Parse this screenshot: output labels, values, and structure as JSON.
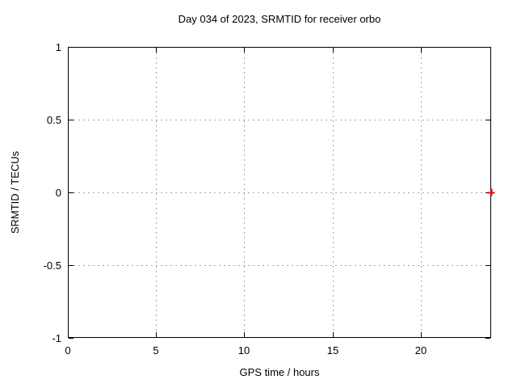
{
  "chart_data": {
    "type": "scatter",
    "title": "Day 034 of 2023, SRMTID for receiver orbo",
    "xlabel": "GPS time / hours",
    "ylabel": "SRMTID / TECUs",
    "xlim": [
      0,
      24
    ],
    "ylim": [
      -1,
      1
    ],
    "x_ticks": [
      {
        "value": 0,
        "label": "0"
      },
      {
        "value": 5,
        "label": "5"
      },
      {
        "value": 10,
        "label": "10"
      },
      {
        "value": 15,
        "label": "15"
      },
      {
        "value": 20,
        "label": "20"
      }
    ],
    "y_ticks": [
      {
        "value": 1,
        "label": "1"
      },
      {
        "value": 0.5,
        "label": "0.5"
      },
      {
        "value": 0,
        "label": "0"
      },
      {
        "value": -0.5,
        "label": "-0.5"
      },
      {
        "value": -1,
        "label": "-1"
      }
    ],
    "x_grid_values": [
      5,
      10,
      15,
      20
    ],
    "y_grid_values": [
      0.5,
      0,
      -0.5
    ],
    "grid": "dashed",
    "legend_position": "none",
    "series": [
      {
        "name": "SRMTID",
        "marker": "plus",
        "color": "#ff0000",
        "points": [
          {
            "x": 24,
            "y": 0
          }
        ]
      }
    ],
    "colors": {
      "background": "#ffffff",
      "axis": "#000000",
      "grid": "#a8a8a8",
      "text": "#000000",
      "point": "#ff0000"
    }
  }
}
